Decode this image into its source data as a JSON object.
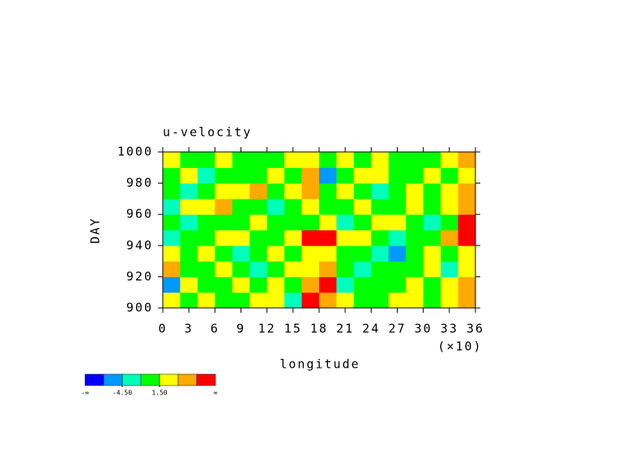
{
  "chart_data": {
    "type": "heatmap",
    "title": "u-velocity",
    "xlabel": "longitude",
    "ylabel": "DAY",
    "x_multiplier": "(×10)",
    "xlim": [
      0,
      36
    ],
    "xticks": [
      0,
      3,
      6,
      9,
      12,
      15,
      18,
      21,
      24,
      27,
      30,
      33,
      36
    ],
    "ylim": [
      900,
      1000
    ],
    "yticks": [
      900,
      920,
      940,
      960,
      980,
      1000
    ],
    "x_bins": [
      0,
      2,
      4,
      6,
      8,
      10,
      12,
      14,
      16,
      18,
      20,
      22,
      24,
      26,
      28,
      30,
      32,
      34,
      36
    ],
    "y_bins": [
      900,
      910,
      920,
      930,
      940,
      950,
      960,
      970,
      980,
      990,
      1000
    ],
    "values": [
      [
        3,
        1,
        2,
        0,
        1,
        2,
        3,
        -2,
        9,
        5,
        2,
        1,
        0,
        2,
        3,
        1,
        4,
        6
      ],
      [
        -5,
        2,
        0,
        -1,
        3,
        1,
        2,
        0,
        6,
        8,
        -2,
        1,
        -1,
        0,
        2,
        1,
        3,
        5
      ],
      [
        5,
        1,
        -1,
        2,
        0,
        -3,
        1,
        2,
        3,
        7,
        0,
        -2,
        0,
        1,
        -1,
        2,
        -2,
        3
      ],
      [
        2,
        0,
        3,
        1,
        -2,
        0,
        2,
        -1,
        4,
        2,
        1,
        0,
        -4,
        -6,
        1,
        2,
        0,
        4
      ],
      [
        -4,
        0,
        1,
        2,
        3,
        -1,
        0,
        3,
        9,
        8,
        2,
        3,
        1,
        -2,
        0,
        1,
        5,
        8
      ],
      [
        0,
        -2,
        1,
        0,
        -1,
        2,
        1,
        0,
        1,
        3,
        -3,
        -1,
        2,
        3,
        0,
        -2,
        1,
        9
      ],
      [
        -2,
        3,
        2,
        5,
        1,
        0,
        -2,
        1,
        2,
        -1,
        0,
        3,
        1,
        0,
        2,
        -1,
        3,
        6
      ],
      [
        1,
        -3,
        0,
        2,
        2,
        5,
        0,
        2,
        7,
        1,
        2,
        0,
        -2,
        1,
        2,
        0,
        2,
        7
      ],
      [
        0,
        2,
        -2,
        1,
        0,
        1,
        2,
        -1,
        6,
        -6,
        1,
        2,
        3,
        0,
        1,
        2,
        1,
        4
      ],
      [
        2,
        1,
        0,
        3,
        -1,
        0,
        1,
        2,
        3,
        0,
        2,
        1,
        2,
        1,
        -1,
        0,
        3,
        5
      ]
    ],
    "levels": [
      -7.5,
      -4.5,
      -1.5,
      1.5,
      4.5,
      7.5
    ],
    "colors": [
      "#0000ff",
      "#0099ff",
      "#00ffbb",
      "#00ff00",
      "#ffff00",
      "#ffaa00",
      "#ff0000"
    ],
    "colorbar_ticks": [
      {
        "value": -4.5,
        "label": "-4.50"
      },
      {
        "value": 1.5,
        "label": "1.50"
      }
    ],
    "colorbar_ends": [
      "-∞",
      "∞"
    ]
  }
}
